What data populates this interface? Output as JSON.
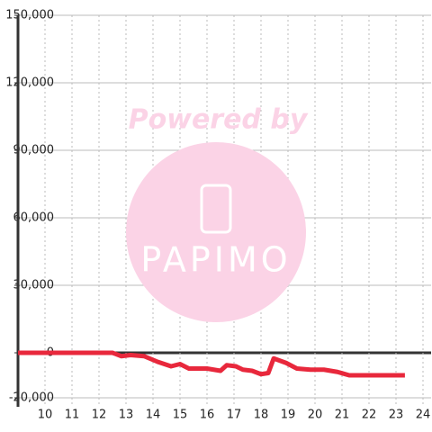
{
  "chart_data": {
    "type": "line",
    "watermark": {
      "text": "Powered by",
      "logo": "PAPIMO"
    },
    "x": [
      9,
      12.5,
      12.83,
      13.17,
      13.67,
      14.17,
      14.67,
      15,
      15.33,
      16,
      16.5,
      16.73,
      17.07,
      17.33,
      17.67,
      18,
      18.27,
      18.47,
      18.93,
      19.33,
      19.83,
      20.33,
      20.83,
      21.27,
      23.33
    ],
    "series": [
      {
        "color": "#e8283c",
        "values": [
          0,
          0,
          -1500,
          -1000,
          -1500,
          -4000,
          -6000,
          -5000,
          -7000,
          -7000,
          -8000,
          -5500,
          -6000,
          -7500,
          -8000,
          -9500,
          -9000,
          -2500,
          -4500,
          -7000,
          -7500,
          -7500,
          -8500,
          -10000,
          -10000
        ]
      }
    ],
    "xlim": [
      9,
      24.3
    ],
    "xticks": [
      10,
      11,
      12,
      13,
      14,
      15,
      16,
      17,
      18,
      19,
      20,
      21,
      22,
      23,
      24
    ],
    "ylim": [
      -24000,
      150000
    ],
    "yticks": [
      {
        "value": 150000,
        "label": "150,000"
      },
      {
        "value": 120000,
        "label": "120,000"
      },
      {
        "value": 90000,
        "label": "90,000"
      },
      {
        "value": 60000,
        "label": "60,000"
      },
      {
        "value": 30000,
        "label": "30,000"
      },
      0,
      {
        "value": -20000,
        "label": "-20,000"
      }
    ],
    "grid": true
  }
}
